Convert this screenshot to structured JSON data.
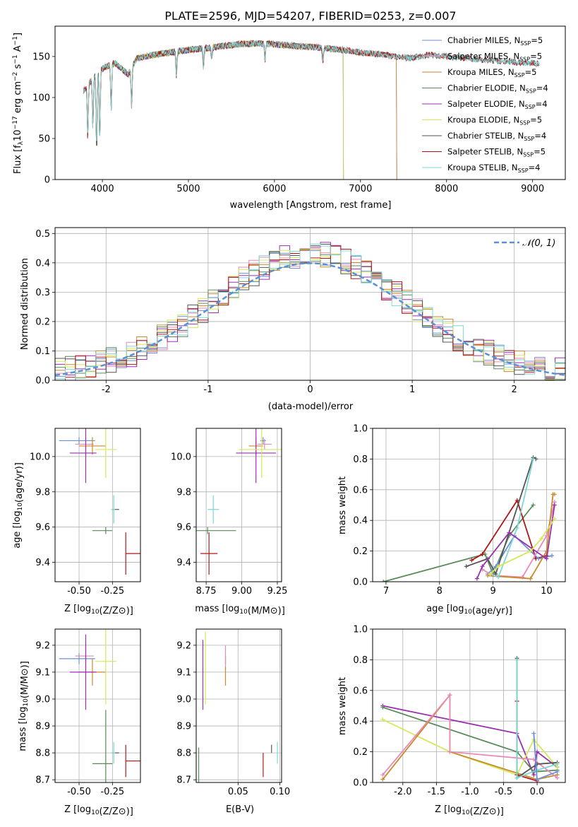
{
  "figure_title": "PLATE=2596, MJD=54207, FIBERID=0253, z=0.007",
  "colors": {
    "Chabrier MILES": "#6b8fd6",
    "Salpeter MILES": "#e889b8",
    "Kroupa MILES": "#c88a2a",
    "Chabrier ELODIE": "#5b8a5b",
    "Salpeter ELODIE": "#9a2fb0",
    "Kroupa ELODIE": "#d4e85a",
    "Chabrier STELIB": "#555555",
    "Salpeter STELIB": "#b01818",
    "Kroupa STELIB": "#7fd6d6",
    "gaussian": "#5b8fd6"
  },
  "chart_data": [
    {
      "type": "line",
      "title": "PLATE=2596, MJD=54207, FIBERID=0253, z=0.007",
      "xlabel": "wavelength [Angstrom, rest frame]",
      "ylabel_parts": {
        "pre": "Flux [f",
        "lambda": "λ",
        "mid": "10",
        "exp1": "−17",
        "post": " erg cm",
        "exp2": "−2",
        "s": " s",
        "exp3": "−1",
        "A": " A",
        "exp4": "−1",
        "close": "]"
      },
      "xlim": [
        3450,
        9380
      ],
      "ylim": [
        0,
        187
      ],
      "xticks": [
        4000,
        5000,
        6000,
        7000,
        8000,
        9000
      ],
      "yticks": [
        0,
        50,
        100,
        150
      ],
      "legend_position": "upper right",
      "legend": [
        {
          "label": "Chabrier MILES, N",
          "sub": "SSP",
          "val": "=5"
        },
        {
          "label": "Salpeter MILES, N",
          "sub": "SSP",
          "val": "=5"
        },
        {
          "label": "Kroupa MILES, N",
          "sub": "SSP",
          "val": "=5"
        },
        {
          "label": "Chabrier ELODIE, N",
          "sub": "SSP",
          "val": "=4"
        },
        {
          "label": "Salpeter ELODIE, N",
          "sub": "SSP",
          "val": "=4"
        },
        {
          "label": "Kroupa ELODIE, N",
          "sub": "SSP",
          "val": "=5"
        },
        {
          "label": "Chabrier STELIB, N",
          "sub": "SSP",
          "val": "=4"
        },
        {
          "label": "Salpeter STELIB, N",
          "sub": "SSP",
          "val": "=5"
        },
        {
          "label": "Kroupa STELIB, N",
          "sub": "SSP",
          "val": "=4"
        }
      ],
      "continuum": [
        [
          3780,
          108
        ],
        [
          3850,
          118
        ],
        [
          3950,
          132
        ],
        [
          4050,
          138
        ],
        [
          4150,
          142
        ],
        [
          4300,
          128
        ],
        [
          4400,
          148
        ],
        [
          4600,
          152
        ],
        [
          4800,
          155
        ],
        [
          5000,
          158
        ],
        [
          5200,
          160
        ],
        [
          5400,
          163
        ],
        [
          5600,
          165
        ],
        [
          5800,
          166
        ],
        [
          6000,
          165
        ],
        [
          6200,
          163
        ],
        [
          6400,
          162
        ],
        [
          6600,
          160
        ],
        [
          6800,
          158
        ],
        [
          7000,
          155
        ],
        [
          7200,
          153
        ],
        [
          7400,
          150
        ],
        [
          7600,
          148
        ],
        [
          7800,
          152
        ],
        [
          8000,
          150
        ],
        [
          8200,
          148
        ],
        [
          8400,
          146
        ],
        [
          8600,
          145
        ],
        [
          8800,
          143
        ],
        [
          9000,
          142
        ],
        [
          9080,
          141
        ]
      ],
      "series_ranges": {
        "Chabrier MILES": [
          3780,
          7420
        ],
        "Salpeter MILES": [
          3780,
          7420
        ],
        "Kroupa MILES": [
          3780,
          7420
        ],
        "Chabrier ELODIE": [
          3780,
          6800
        ],
        "Salpeter ELODIE": [
          3780,
          6800
        ],
        "Kroupa ELODIE": [
          3780,
          6800
        ],
        "Chabrier STELIB": [
          3780,
          9080
        ],
        "Salpeter STELIB": [
          3780,
          9080
        ],
        "Kroupa STELIB": [
          3780,
          9080
        ]
      },
      "absorption_features": [
        [
          3830,
          65
        ],
        [
          3890,
          60
        ],
        [
          3933,
          95
        ],
        [
          3969,
          85
        ],
        [
          4102,
          55
        ],
        [
          4340,
          48
        ],
        [
          4861,
          30
        ],
        [
          5175,
          25
        ],
        [
          5270,
          15
        ],
        [
          5890,
          20
        ],
        [
          6563,
          15
        ]
      ]
    },
    {
      "type": "bar",
      "xlabel": "(data-model)/error",
      "ylabel": "Normed distribution",
      "xlim": [
        -2.5,
        2.5
      ],
      "ylim": [
        0,
        0.52
      ],
      "xticks": [
        -2,
        -1,
        0,
        1,
        2
      ],
      "yticks": [
        0.0,
        0.1,
        0.2,
        0.3,
        0.4,
        0.5
      ],
      "legend_position": "upper right",
      "legend": {
        "label": "𝒩(0, 1)"
      },
      "bin_width": 0.1,
      "bin_start": -2.5
    },
    {
      "type": "scatter",
      "xlabel": "Z [log10(Z/Z⊙)]",
      "ylabel": "age  [log10(age/yr)]",
      "xlim": [
        -0.68,
        -0.04
      ],
      "ylim": [
        9.29,
        10.16
      ],
      "xticks": [
        -0.5,
        -0.25
      ],
      "yticks": [
        9.4,
        9.6,
        9.8,
        10.0
      ]
    },
    {
      "type": "scatter",
      "xlabel": "mass [log10(M/M⊙)]",
      "ylabel": "",
      "xlim": [
        8.68,
        9.28
      ],
      "ylim": [
        9.29,
        10.16
      ],
      "xticks": [
        8.75,
        9.0,
        9.25
      ],
      "yticks": [
        9.4,
        9.6,
        9.8,
        10.0
      ]
    },
    {
      "type": "line",
      "xlabel": "age  [log10(age/yr)]",
      "ylabel": "mass weight",
      "xlim": [
        6.75,
        10.35
      ],
      "ylim": [
        0,
        1.0
      ],
      "xticks": [
        7,
        8,
        9,
        10
      ],
      "yticks": [
        0.0,
        0.2,
        0.4,
        0.6,
        0.8,
        1.0
      ]
    },
    {
      "type": "scatter",
      "xlabel": "Z [log10(Z/Z⊙)]",
      "ylabel": "mass [log10(M/M⊙)]",
      "xlim": [
        -0.68,
        -0.04
      ],
      "ylim": [
        8.69,
        9.26
      ],
      "xticks": [
        -0.5,
        -0.25
      ],
      "yticks": [
        8.7,
        8.8,
        8.9,
        9.0,
        9.1,
        9.2
      ]
    },
    {
      "type": "scatter",
      "xlabel": "E(B-V)",
      "ylabel": "",
      "xlim": [
        0.0,
        0.102
      ],
      "ylim": [
        8.69,
        9.26
      ],
      "xticks": [
        0.05,
        0.1
      ],
      "yticks": [
        8.7,
        8.8,
        8.9,
        9.0,
        9.1,
        9.2
      ]
    },
    {
      "type": "line",
      "xlabel": "Z [log10(Z/Z⊙)]",
      "ylabel": "mass weight",
      "xlim": [
        -2.45,
        0.42
      ],
      "ylim": [
        0,
        1.0
      ],
      "xticks": [
        -2.0,
        -1.5,
        -1.0,
        -0.5,
        0.0
      ],
      "yticks": [
        0.0,
        0.2,
        0.4,
        0.6,
        0.8,
        1.0
      ]
    }
  ],
  "model_fits": [
    {
      "name": "Chabrier MILES",
      "Z": -0.5,
      "Zerr": [
        0.15,
        0.12
      ],
      "age": 10.09,
      "ageerr": 0.02,
      "mass": 9.15,
      "masserr": 0.02,
      "ebv": 0.035,
      "ebverr": 0.01
    },
    {
      "name": "Salpeter MILES",
      "Z": -0.45,
      "Zerr": [
        0.08,
        0.06
      ],
      "age": 10.07,
      "ageerr": 0.03,
      "mass": 9.16,
      "masserr": 0.05,
      "ebv": 0.035,
      "ebverr": 0.04
    },
    {
      "name": "Kroupa MILES",
      "Z": -0.4,
      "Zerr": [
        0.1,
        0.1
      ],
      "age": 10.06,
      "ageerr": 0.05,
      "mass": 9.1,
      "masserr": 0.05,
      "ebv": 0.035,
      "ebverr": 0.02
    },
    {
      "name": "Chabrier ELODIE",
      "Z": -0.3,
      "Zerr": [
        0.1,
        0.05
      ],
      "age": 9.58,
      "ageerr": 0.02,
      "mass": 8.76,
      "masserr": 0.2,
      "ebv": 0.003,
      "ebverr": 0.06
    },
    {
      "name": "Salpeter ELODIE",
      "Z": -0.45,
      "Zerr": [
        0.12,
        0.08
      ],
      "age": 10.02,
      "ageerr": 0.17,
      "mass": 9.1,
      "masserr": 0.14,
      "ebv": 0.008,
      "ebverr": 0.12
    },
    {
      "name": "Kroupa ELODIE",
      "Z": -0.3,
      "Zerr": [
        0.08,
        0.08
      ],
      "age": 10.04,
      "ageerr": 0.16,
      "mass": 9.14,
      "masserr": 0.16,
      "ebv": 0.011,
      "ebverr": 0.11
    },
    {
      "name": "Chabrier STELIB",
      "Z": -0.23,
      "Zerr": [
        0.02,
        0.03
      ],
      "age": 9.7,
      "ageerr": 0.0,
      "mass": 8.8,
      "masserr": 0.0,
      "ebv": 0.09,
      "ebverr": 0.03
    },
    {
      "name": "Salpeter STELIB",
      "Z": -0.15,
      "Zerr": [
        0.0,
        0.12
      ],
      "age": 9.45,
      "ageerr": 0.12,
      "mass": 8.77,
      "masserr": 0.06,
      "ebv": 0.08,
      "ebverr": 0.03
    },
    {
      "name": "Kroupa STELIB",
      "Z": -0.24,
      "Zerr": [
        0.02,
        0.01
      ],
      "age": 9.7,
      "ageerr": 0.08,
      "mass": 8.8,
      "masserr": 0.04,
      "ebv": 0.097,
      "ebverr": 0.04
    }
  ],
  "age_weights": [
    {
      "name": "Chabrier ELODIE",
      "pts": [
        [
          6.95,
          0.0
        ],
        [
          8.85,
          0.18
        ],
        [
          9.0,
          0.05
        ],
        [
          9.3,
          0.3
        ],
        [
          9.75,
          0.5
        ]
      ]
    },
    {
      "name": "Salpeter STELIB",
      "pts": [
        [
          8.6,
          0.14
        ],
        [
          8.8,
          0.18
        ],
        [
          9.45,
          0.53
        ],
        [
          9.8,
          0.15
        ],
        [
          10.0,
          0.17
        ]
      ]
    },
    {
      "name": "Chabrier MILES",
      "pts": [
        [
          8.9,
          0.05
        ],
        [
          9.05,
          0.1
        ],
        [
          9.4,
          0.3
        ],
        [
          9.85,
          0.15
        ],
        [
          10.1,
          0.17
        ]
      ]
    },
    {
      "name": "Salpeter MILES",
      "pts": [
        [
          8.8,
          0.08
        ],
        [
          9.0,
          0.04
        ],
        [
          9.55,
          0.03
        ],
        [
          10.0,
          0.3
        ],
        [
          10.15,
          0.52
        ]
      ]
    },
    {
      "name": "Kroupa MILES",
      "pts": [
        [
          8.9,
          0.04
        ],
        [
          9.7,
          0.02
        ],
        [
          10.0,
          0.2
        ],
        [
          10.12,
          0.57
        ],
        [
          10.15,
          0.57
        ]
      ]
    },
    {
      "name": "Chabrier STELIB",
      "pts": [
        [
          8.5,
          0.1
        ],
        [
          8.9,
          0.15
        ],
        [
          9.05,
          0.05
        ],
        [
          9.75,
          0.81
        ],
        [
          9.8,
          0.8
        ]
      ]
    },
    {
      "name": "Kroupa STELIB",
      "pts": [
        [
          8.95,
          0.05
        ],
        [
          9.1,
          0.03
        ],
        [
          9.45,
          0.35
        ],
        [
          9.75,
          0.8
        ]
      ]
    },
    {
      "name": "Salpeter ELODIE",
      "pts": [
        [
          8.7,
          0.02
        ],
        [
          8.8,
          0.1
        ],
        [
          9.3,
          0.32
        ],
        [
          10.0,
          0.15
        ],
        [
          10.15,
          0.5
        ]
      ]
    },
    {
      "name": "Kroupa ELODIE",
      "pts": [
        [
          8.95,
          0.05
        ],
        [
          9.1,
          0.1
        ],
        [
          9.7,
          0.2
        ],
        [
          9.9,
          0.28
        ],
        [
          10.15,
          0.41
        ]
      ]
    }
  ],
  "z_weights": [
    {
      "name": "Salpeter ELODIE",
      "pts": [
        [
          -2.3,
          0.5
        ],
        [
          -0.3,
          0.32
        ],
        [
          -0.05,
          0.05
        ],
        [
          0.0,
          0.2
        ],
        [
          0.3,
          0.1
        ]
      ]
    },
    {
      "name": "Chabrier ELODIE",
      "pts": [
        [
          -2.3,
          0.49
        ],
        [
          -0.3,
          0.2
        ],
        [
          -0.05,
          0.07
        ],
        [
          0.3,
          0.08
        ]
      ]
    },
    {
      "name": "Kroupa ELODIE",
      "pts": [
        [
          -2.3,
          0.41
        ],
        [
          -1.3,
          0.2
        ],
        [
          -0.3,
          0.05
        ],
        [
          -0.05,
          0.28
        ],
        [
          0.3,
          0.1
        ]
      ]
    },
    {
      "name": "Kroupa MILES",
      "pts": [
        [
          -2.3,
          0.02
        ],
        [
          -1.3,
          0.57
        ],
        [
          -1.3,
          0.2
        ],
        [
          0.0,
          0.02
        ],
        [
          0.3,
          0.05
        ]
      ]
    },
    {
      "name": "Salpeter MILES",
      "pts": [
        [
          -2.3,
          0.05
        ],
        [
          -1.3,
          0.57
        ],
        [
          -1.3,
          0.2
        ],
        [
          -0.05,
          0.15
        ],
        [
          0.3,
          0.03
        ]
      ]
    },
    {
      "name": "Chabrier STELIB",
      "pts": [
        [
          -0.3,
          0.81
        ],
        [
          -0.3,
          0.03
        ],
        [
          0.0,
          0.12
        ],
        [
          0.3,
          0.13
        ]
      ]
    },
    {
      "name": "Salpeter STELIB",
      "pts": [
        [
          -0.3,
          0.53
        ],
        [
          -0.3,
          0.05
        ],
        [
          0.0,
          0.01
        ]
      ]
    },
    {
      "name": "Kroupa STELIB",
      "pts": [
        [
          -0.3,
          0.8
        ],
        [
          -0.3,
          0.03
        ],
        [
          0.0,
          0.08
        ],
        [
          0.3,
          0.12
        ]
      ]
    },
    {
      "name": "Chabrier MILES",
      "pts": [
        [
          -0.05,
          0.32
        ],
        [
          0.0,
          0.02
        ],
        [
          0.3,
          0.07
        ]
      ]
    }
  ]
}
